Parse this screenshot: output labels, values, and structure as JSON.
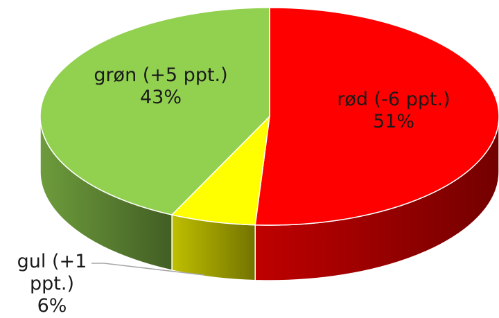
{
  "chart_data": {
    "type": "pie",
    "categories": [
      "rød (-6 ppt.)",
      "gul (+1 ppt.)",
      "grøn (+5 ppt.)"
    ],
    "values": [
      51,
      6,
      43
    ],
    "value_labels": [
      "51%",
      "6%",
      "43%"
    ],
    "colors": [
      "#ff0000",
      "#ffff00",
      "#92d050"
    ]
  }
}
